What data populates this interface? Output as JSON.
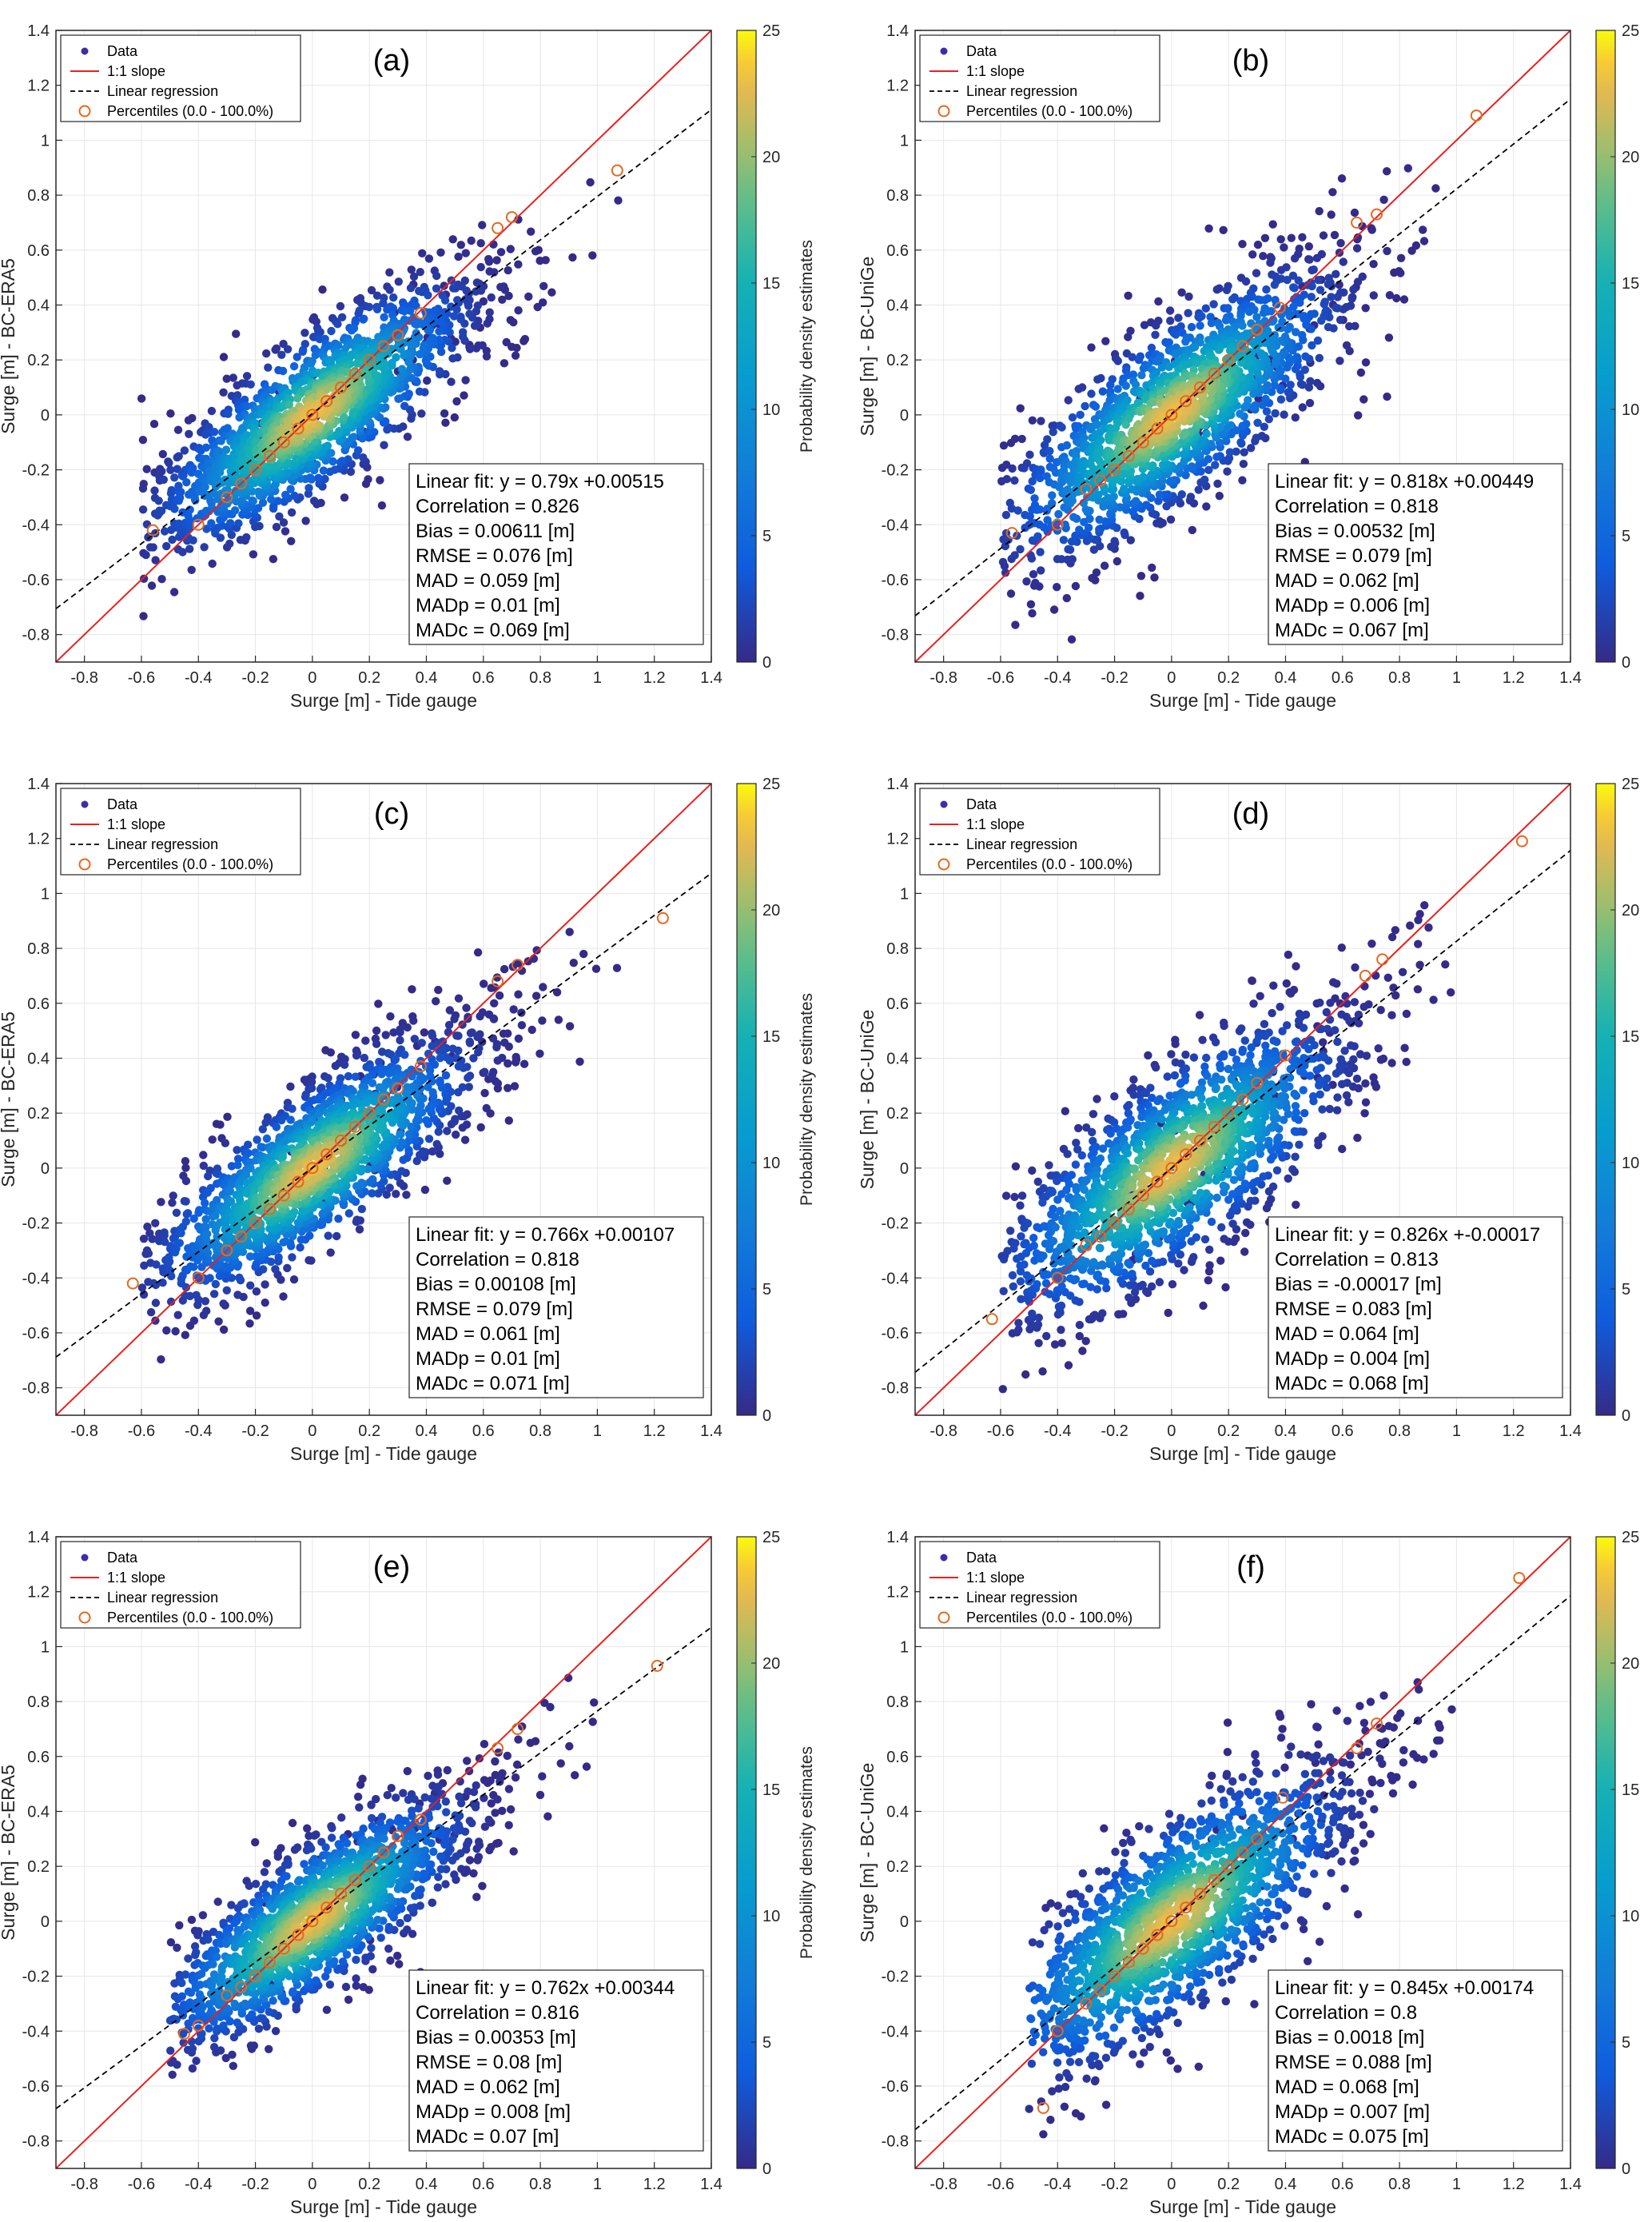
{
  "figure": {
    "legend": {
      "data": "Data",
      "one_to_one": "1:1 slope",
      "regression": "Linear regression",
      "percentiles": "Percentiles (0.0 - 100.0%)"
    },
    "colorbar": {
      "label": "Probability density estimates",
      "ticks": [
        "0",
        "5",
        "10",
        "15",
        "20",
        "25"
      ],
      "range": [
        0,
        25
      ]
    },
    "xlabel": "Surge [m] - Tide gauge",
    "xticks": [
      "-0.8",
      "-0.6",
      "-0.4",
      "-0.2",
      "0",
      "0.2",
      "0.4",
      "0.6",
      "0.8",
      "1",
      "1.2",
      "1.4"
    ],
    "yticks": [
      "-0.8",
      "-0.6",
      "-0.4",
      "-0.2",
      "0",
      "0.2",
      "0.4",
      "0.6",
      "0.8",
      "1",
      "1.2",
      "1.4"
    ],
    "xlim": [
      -0.9,
      1.4
    ],
    "ylim": [
      -0.9,
      1.4
    ],
    "colors": {
      "one_to_one": "#e8211d",
      "regression": "#000000",
      "percentile_marker": "#e2691f",
      "low_density": "#3b2ea6",
      "high_density": "#f9e620"
    }
  },
  "chart_data": [
    {
      "panel": "(a)",
      "type": "scatter",
      "ylabel": "Surge [m] - BC-ERA5",
      "fit": {
        "slope": 0.79,
        "intercept": 0.00515
      },
      "stats": [
        "Linear fit: y = 0.79x +0.00515",
        "Correlation = 0.826",
        "Bias = 0.00611 [m]",
        "RMSE = 0.076 [m]",
        "MAD = 0.059 [m]",
        "MADp = 0.01 [m]",
        "MADc = 0.069 [m]"
      ],
      "percentiles": [
        [
          -0.56,
          -0.42
        ],
        [
          -0.4,
          -0.4
        ],
        [
          -0.3,
          -0.3
        ],
        [
          -0.25,
          -0.25
        ],
        [
          -0.2,
          -0.2
        ],
        [
          -0.15,
          -0.15
        ],
        [
          -0.1,
          -0.1
        ],
        [
          -0.05,
          -0.05
        ],
        [
          0,
          0
        ],
        [
          0.05,
          0.05
        ],
        [
          0.1,
          0.1
        ],
        [
          0.15,
          0.15
        ],
        [
          0.2,
          0.2
        ],
        [
          0.25,
          0.25
        ],
        [
          0.3,
          0.29
        ],
        [
          0.38,
          0.37
        ],
        [
          0.65,
          0.68
        ],
        [
          0.7,
          0.72
        ],
        [
          1.07,
          0.89
        ]
      ],
      "cloud": {
        "spread_major": 0.34,
        "spread_minor": 0.115,
        "xmin": -0.6,
        "xmax": 1.1,
        "extreme_x": 0.82
      }
    },
    {
      "panel": "(b)",
      "type": "scatter",
      "ylabel": "Surge [m] - BC-UniGe",
      "fit": {
        "slope": 0.818,
        "intercept": 0.00449
      },
      "stats": [
        "Linear fit: y = 0.818x +0.00449",
        "Correlation = 0.818",
        "Bias = 0.00532 [m]",
        "RMSE = 0.079 [m]",
        "MAD = 0.062 [m]",
        "MADp = 0.006 [m]",
        "MADc = 0.067 [m]"
      ],
      "percentiles": [
        [
          -0.56,
          -0.43
        ],
        [
          -0.4,
          -0.4
        ],
        [
          -0.3,
          -0.27
        ],
        [
          -0.25,
          -0.24
        ],
        [
          -0.2,
          -0.2
        ],
        [
          -0.15,
          -0.15
        ],
        [
          -0.1,
          -0.1
        ],
        [
          -0.05,
          -0.05
        ],
        [
          0,
          0
        ],
        [
          0.05,
          0.05
        ],
        [
          0.1,
          0.1
        ],
        [
          0.15,
          0.15
        ],
        [
          0.2,
          0.2
        ],
        [
          0.25,
          0.25
        ],
        [
          0.3,
          0.31
        ],
        [
          0.38,
          0.39
        ],
        [
          0.65,
          0.7
        ],
        [
          0.72,
          0.73
        ],
        [
          1.07,
          1.09
        ]
      ],
      "cloud": {
        "spread_major": 0.36,
        "spread_minor": 0.13,
        "xmin": -0.6,
        "xmax": 1.1,
        "extreme_x": 0.9
      }
    },
    {
      "panel": "(c)",
      "type": "scatter",
      "ylabel": "Surge [m] - BC-ERA5",
      "fit": {
        "slope": 0.766,
        "intercept": 0.00107
      },
      "stats": [
        "Linear fit: y = 0.766x +0.00107",
        "Correlation = 0.818",
        "Bias = 0.00108 [m]",
        "RMSE = 0.079 [m]",
        "MAD = 0.061 [m]",
        "MADp = 0.01 [m]",
        "MADc = 0.071 [m]"
      ],
      "percentiles": [
        [
          -0.63,
          -0.42
        ],
        [
          -0.4,
          -0.4
        ],
        [
          -0.3,
          -0.3
        ],
        [
          -0.25,
          -0.25
        ],
        [
          -0.2,
          -0.2
        ],
        [
          -0.15,
          -0.15
        ],
        [
          -0.1,
          -0.1
        ],
        [
          -0.05,
          -0.05
        ],
        [
          0,
          0
        ],
        [
          0.05,
          0.05
        ],
        [
          0.1,
          0.1
        ],
        [
          0.15,
          0.15
        ],
        [
          0.2,
          0.2
        ],
        [
          0.25,
          0.25
        ],
        [
          0.3,
          0.29
        ],
        [
          0.38,
          0.37
        ],
        [
          0.65,
          0.68
        ],
        [
          0.72,
          0.74
        ],
        [
          1.23,
          0.91
        ]
      ],
      "cloud": {
        "spread_major": 0.34,
        "spread_minor": 0.115,
        "xmin": -0.6,
        "xmax": 1.25,
        "extreme_x": 0.85
      }
    },
    {
      "panel": "(d)",
      "type": "scatter",
      "ylabel": "Surge [m] - BC-UniGe",
      "fit": {
        "slope": 0.826,
        "intercept": -0.00017
      },
      "stats": [
        "Linear fit: y = 0.826x +-0.00017",
        "Correlation = 0.813",
        "Bias = -0.00017 [m]",
        "RMSE = 0.083 [m]",
        "MAD = 0.064 [m]",
        "MADp = 0.004 [m]",
        "MADc = 0.068 [m]"
      ],
      "percentiles": [
        [
          -0.63,
          -0.55
        ],
        [
          -0.4,
          -0.4
        ],
        [
          -0.3,
          -0.28
        ],
        [
          -0.25,
          -0.25
        ],
        [
          -0.2,
          -0.2
        ],
        [
          -0.15,
          -0.15
        ],
        [
          -0.1,
          -0.1
        ],
        [
          -0.05,
          -0.05
        ],
        [
          0,
          0
        ],
        [
          0.05,
          0.05
        ],
        [
          0.1,
          0.1
        ],
        [
          0.15,
          0.15
        ],
        [
          0.2,
          0.2
        ],
        [
          0.25,
          0.25
        ],
        [
          0.3,
          0.31
        ],
        [
          0.4,
          0.41
        ],
        [
          0.68,
          0.7
        ],
        [
          0.74,
          0.76
        ],
        [
          1.23,
          1.19
        ]
      ],
      "cloud": {
        "spread_major": 0.37,
        "spread_minor": 0.14,
        "xmin": -0.6,
        "xmax": 1.25,
        "extreme_x": 0.92
      }
    },
    {
      "panel": "(e)",
      "type": "scatter",
      "ylabel": "Surge [m] - BC-ERA5",
      "fit": {
        "slope": 0.762,
        "intercept": 0.00344
      },
      "stats": [
        "Linear fit: y = 0.762x +0.00344",
        "Correlation = 0.816",
        "Bias = 0.00353 [m]",
        "RMSE = 0.08 [m]",
        "MAD = 0.062 [m]",
        "MADp = 0.008 [m]",
        "MADc = 0.07 [m]"
      ],
      "percentiles": [
        [
          -0.45,
          -0.41
        ],
        [
          -0.4,
          -0.38
        ],
        [
          -0.3,
          -0.27
        ],
        [
          -0.25,
          -0.24
        ],
        [
          -0.2,
          -0.2
        ],
        [
          -0.15,
          -0.15
        ],
        [
          -0.1,
          -0.1
        ],
        [
          -0.05,
          -0.05
        ],
        [
          0,
          0
        ],
        [
          0.05,
          0.05
        ],
        [
          0.1,
          0.1
        ],
        [
          0.15,
          0.15
        ],
        [
          0.2,
          0.2
        ],
        [
          0.25,
          0.25
        ],
        [
          0.3,
          0.31
        ],
        [
          0.38,
          0.37
        ],
        [
          0.65,
          0.63
        ],
        [
          0.72,
          0.7
        ],
        [
          1.21,
          0.93
        ]
      ],
      "cloud": {
        "spread_major": 0.33,
        "spread_minor": 0.11,
        "xmin": -0.5,
        "xmax": 1.22,
        "extreme_x": 0.85
      }
    },
    {
      "panel": "(f)",
      "type": "scatter",
      "ylabel": "Surge [m] - BC-UniGe",
      "fit": {
        "slope": 0.845,
        "intercept": 0.00174
      },
      "stats": [
        "Linear fit: y = 0.845x +0.00174",
        "Correlation = 0.8",
        "Bias = 0.0018 [m]",
        "RMSE = 0.088 [m]",
        "MAD = 0.068 [m]",
        "MADp = 0.007 [m]",
        "MADc = 0.075 [m]"
      ],
      "percentiles": [
        [
          -0.45,
          -0.68
        ],
        [
          -0.4,
          -0.4
        ],
        [
          -0.3,
          -0.3
        ],
        [
          -0.25,
          -0.25
        ],
        [
          -0.2,
          -0.2
        ],
        [
          -0.15,
          -0.15
        ],
        [
          -0.1,
          -0.1
        ],
        [
          -0.05,
          -0.05
        ],
        [
          0,
          0
        ],
        [
          0.05,
          0.05
        ],
        [
          0.1,
          0.1
        ],
        [
          0.15,
          0.15
        ],
        [
          0.2,
          0.2
        ],
        [
          0.25,
          0.25
        ],
        [
          0.3,
          0.3
        ],
        [
          0.39,
          0.45
        ],
        [
          0.65,
          0.63
        ],
        [
          0.72,
          0.72
        ],
        [
          1.22,
          1.25
        ]
      ],
      "cloud": {
        "spread_major": 0.38,
        "spread_minor": 0.14,
        "xmin": -0.5,
        "xmax": 1.25,
        "extreme_x": 0.95
      }
    }
  ]
}
